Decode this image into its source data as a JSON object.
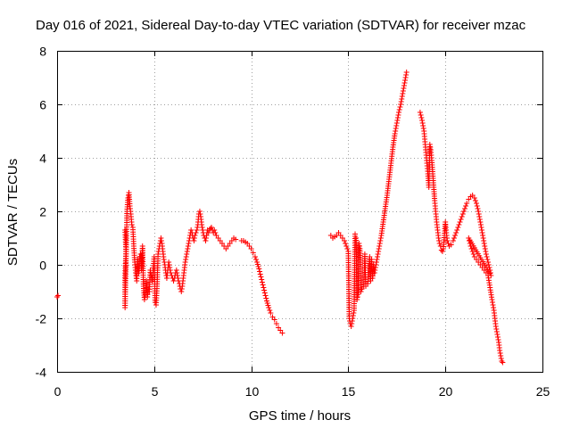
{
  "chart_data": {
    "type": "scatter",
    "title": "Day 016 of 2021, Sidereal Day-to-day VTEC variation (SDTVAR) for receiver mzac",
    "xlabel": "GPS time / hours",
    "ylabel": "SDTVAR / TECUs",
    "xlim": [
      0,
      25
    ],
    "ylim": [
      -4,
      8
    ],
    "xticks": [
      0,
      5,
      10,
      15,
      20,
      25
    ],
    "yticks": [
      -4,
      -2,
      0,
      2,
      4,
      6,
      8
    ],
    "xtick_labels": [
      "0",
      "5",
      "10",
      "15",
      "20",
      "25"
    ],
    "ytick_labels": [
      "-4",
      "-2",
      "0",
      "2",
      "4",
      "6",
      "8"
    ],
    "grid": true,
    "marker": "+",
    "color": "#ff0000",
    "series": [
      {
        "name": "SDTVAR",
        "segments": [
          [
            [
              0.0,
              -1.2
            ],
            [
              0.05,
              -1.15
            ]
          ],
          [
            [
              3.5,
              1.3
            ],
            [
              3.55,
              0.5
            ],
            [
              3.5,
              -0.4
            ],
            [
              3.5,
              -1.1
            ],
            [
              3.5,
              -1.6
            ],
            [
              3.6,
              2.0
            ],
            [
              3.65,
              2.5
            ],
            [
              3.7,
              2.7
            ],
            [
              3.75,
              2.2
            ],
            [
              3.8,
              1.9
            ],
            [
              3.85,
              1.5
            ],
            [
              3.9,
              1.4
            ],
            [
              3.95,
              0.7
            ],
            [
              4.0,
              0.1
            ],
            [
              4.05,
              -0.3
            ],
            [
              4.1,
              -0.6
            ],
            [
              4.15,
              0.2
            ],
            [
              4.2,
              -0.3
            ],
            [
              4.25,
              0.3
            ],
            [
              4.3,
              0.4
            ],
            [
              4.35,
              -0.2
            ],
            [
              4.4,
              0.7
            ],
            [
              4.45,
              -0.8
            ],
            [
              4.5,
              -1.3
            ],
            [
              4.55,
              -1.1
            ],
            [
              4.6,
              -0.6
            ],
            [
              4.65,
              -1.2
            ],
            [
              4.7,
              -0.9
            ],
            [
              4.75,
              -1.0
            ],
            [
              4.8,
              -0.2
            ],
            [
              4.85,
              -0.4
            ],
            [
              4.9,
              -0.6
            ],
            [
              4.95,
              -0.2
            ],
            [
              5.0,
              0.3
            ],
            [
              5.05,
              -1.4
            ],
            [
              5.1,
              -1.5
            ],
            [
              5.15,
              -0.8
            ],
            [
              5.2,
              0.4
            ],
            [
              5.25,
              0.6
            ],
            [
              5.3,
              0.8
            ],
            [
              5.35,
              1.0
            ],
            [
              5.4,
              0.8
            ],
            [
              5.45,
              0.5
            ],
            [
              5.5,
              0.2
            ],
            [
              5.55,
              0.0
            ],
            [
              5.6,
              -0.3
            ],
            [
              5.65,
              -0.5
            ],
            [
              5.7,
              -0.2
            ],
            [
              5.75,
              0.1
            ],
            [
              5.8,
              -0.1
            ],
            [
              5.85,
              -0.3
            ],
            [
              5.9,
              -0.4
            ],
            [
              5.95,
              -0.5
            ],
            [
              6.0,
              -0.6
            ],
            [
              6.05,
              -0.5
            ],
            [
              6.1,
              -0.3
            ],
            [
              6.15,
              -0.2
            ],
            [
              6.2,
              -0.4
            ],
            [
              6.25,
              -0.6
            ],
            [
              6.3,
              -0.7
            ],
            [
              6.35,
              -0.9
            ],
            [
              6.4,
              -1.0
            ],
            [
              6.45,
              -0.8
            ],
            [
              6.5,
              -0.5
            ],
            [
              6.55,
              -0.2
            ],
            [
              6.6,
              0.1
            ],
            [
              6.65,
              0.3
            ],
            [
              6.7,
              0.5
            ],
            [
              6.75,
              0.7
            ],
            [
              6.8,
              0.9
            ],
            [
              6.85,
              1.1
            ],
            [
              6.9,
              1.3
            ],
            [
              6.95,
              1.2
            ],
            [
              7.0,
              1.0
            ],
            [
              7.05,
              0.9
            ],
            [
              7.1,
              1.1
            ],
            [
              7.15,
              1.2
            ],
            [
              7.2,
              1.3
            ],
            [
              7.25,
              1.5
            ],
            [
              7.3,
              1.9
            ],
            [
              7.35,
              2.0
            ],
            [
              7.4,
              1.8
            ],
            [
              7.45,
              1.5
            ],
            [
              7.5,
              1.3
            ],
            [
              7.55,
              1.1
            ],
            [
              7.6,
              1.0
            ],
            [
              7.65,
              0.9
            ],
            [
              7.7,
              1.1
            ],
            [
              7.75,
              1.3
            ],
            [
              7.8,
              1.2
            ],
            [
              7.85,
              1.3
            ],
            [
              7.9,
              1.35
            ],
            [
              7.95,
              1.4
            ],
            [
              8.0,
              1.3
            ],
            [
              8.05,
              1.2
            ],
            [
              8.1,
              1.3
            ],
            [
              8.15,
              1.2
            ],
            [
              8.2,
              1.1
            ],
            [
              8.3,
              1.0
            ],
            [
              8.4,
              0.9
            ],
            [
              8.5,
              0.8
            ],
            [
              8.6,
              0.7
            ],
            [
              8.7,
              0.6
            ],
            [
              8.8,
              0.7
            ],
            [
              8.9,
              0.8
            ],
            [
              9.0,
              0.9
            ],
            [
              9.1,
              1.0
            ],
            [
              9.2,
              0.95
            ]
          ],
          [
            [
              9.5,
              0.9
            ],
            [
              9.6,
              0.9
            ],
            [
              9.7,
              0.85
            ],
            [
              9.8,
              0.8
            ],
            [
              9.9,
              0.7
            ],
            [
              10.0,
              0.6
            ],
            [
              10.1,
              0.45
            ],
            [
              10.2,
              0.3
            ],
            [
              10.3,
              0.1
            ],
            [
              10.4,
              -0.15
            ],
            [
              10.5,
              -0.45
            ],
            [
              10.6,
              -0.75
            ],
            [
              10.7,
              -1.05
            ],
            [
              10.8,
              -1.35
            ],
            [
              10.9,
              -1.6
            ],
            [
              11.0,
              -1.8
            ],
            [
              11.1,
              -1.95
            ],
            [
              11.2,
              -2.05
            ],
            [
              11.3,
              -2.2
            ],
            [
              11.4,
              -2.35
            ],
            [
              11.5,
              -2.45
            ],
            [
              11.6,
              -2.55
            ]
          ],
          [
            [
              14.1,
              1.1
            ],
            [
              14.2,
              1.0
            ],
            [
              14.3,
              1.05
            ],
            [
              14.4,
              1.1
            ],
            [
              14.5,
              1.2
            ],
            [
              14.6,
              1.1
            ],
            [
              14.7,
              1.0
            ],
            [
              14.8,
              0.9
            ],
            [
              14.9,
              0.7
            ],
            [
              15.0,
              0.5
            ],
            [
              15.05,
              -2.0
            ],
            [
              15.1,
              -2.2
            ],
            [
              15.15,
              -2.3
            ],
            [
              15.2,
              -2.1
            ],
            [
              15.25,
              -1.9
            ],
            [
              15.3,
              -1.7
            ],
            [
              15.35,
              1.15
            ],
            [
              15.4,
              1.0
            ],
            [
              15.45,
              -1.3
            ],
            [
              15.5,
              -1.1
            ],
            [
              15.55,
              0.8
            ],
            [
              15.6,
              0.6
            ],
            [
              15.65,
              -1.0
            ],
            [
              15.7,
              -0.9
            ],
            [
              15.8,
              -0.8
            ],
            [
              15.85,
              0.4
            ],
            [
              15.9,
              -0.8
            ],
            [
              16.0,
              -0.7
            ],
            [
              16.1,
              0.3
            ],
            [
              16.15,
              -0.6
            ],
            [
              16.2,
              0.2
            ],
            [
              16.25,
              -0.5
            ],
            [
              16.3,
              0.0
            ],
            [
              16.35,
              -0.3
            ],
            [
              16.4,
              -0.1
            ],
            [
              16.5,
              0.3
            ],
            [
              16.6,
              0.7
            ],
            [
              16.7,
              1.1
            ],
            [
              16.8,
              1.6
            ],
            [
              16.9,
              2.1
            ],
            [
              17.0,
              2.6
            ],
            [
              17.1,
              3.2
            ],
            [
              17.2,
              3.8
            ],
            [
              17.3,
              4.4
            ],
            [
              17.4,
              4.9
            ],
            [
              17.5,
              5.3
            ],
            [
              17.6,
              5.7
            ],
            [
              17.7,
              6.0
            ],
            [
              17.8,
              6.4
            ],
            [
              17.9,
              6.8
            ],
            [
              18.0,
              7.2
            ]
          ],
          [
            [
              18.7,
              5.7
            ],
            [
              18.8,
              5.4
            ],
            [
              18.9,
              5.0
            ],
            [
              18.95,
              4.6
            ],
            [
              19.0,
              4.2
            ],
            [
              19.05,
              3.8
            ],
            [
              19.1,
              3.4
            ],
            [
              19.15,
              2.9
            ],
            [
              19.2,
              4.5
            ],
            [
              19.25,
              4.3
            ],
            [
              19.3,
              3.9
            ],
            [
              19.35,
              3.4
            ],
            [
              19.4,
              2.9
            ],
            [
              19.45,
              2.4
            ],
            [
              19.5,
              2.0
            ],
            [
              19.55,
              1.6
            ],
            [
              19.6,
              1.3
            ],
            [
              19.65,
              1.0
            ],
            [
              19.7,
              0.8
            ],
            [
              19.75,
              0.7
            ],
            [
              19.8,
              0.55
            ],
            [
              19.85,
              0.5
            ],
            [
              19.9,
              0.6
            ],
            [
              20.0,
              1.6
            ],
            [
              20.05,
              1.2
            ],
            [
              20.1,
              0.9
            ],
            [
              20.2,
              0.7
            ],
            [
              20.3,
              0.75
            ],
            [
              20.4,
              0.9
            ],
            [
              20.5,
              1.1
            ],
            [
              20.6,
              1.3
            ],
            [
              20.7,
              1.5
            ],
            [
              20.8,
              1.7
            ],
            [
              20.9,
              1.9
            ],
            [
              21.0,
              2.1
            ],
            [
              21.1,
              2.3
            ],
            [
              21.2,
              2.45
            ],
            [
              21.3,
              2.55
            ],
            [
              21.4,
              2.6
            ],
            [
              21.5,
              2.5
            ],
            [
              21.6,
              2.3
            ],
            [
              21.7,
              2.0
            ],
            [
              21.8,
              1.6
            ],
            [
              21.9,
              1.2
            ],
            [
              22.0,
              0.8
            ],
            [
              22.1,
              0.4
            ],
            [
              22.2,
              0.1
            ],
            [
              22.3,
              -0.2
            ],
            [
              22.35,
              -0.4
            ],
            [
              21.2,
              1.0
            ],
            [
              21.3,
              0.7
            ],
            [
              21.4,
              0.5
            ],
            [
              21.5,
              0.3
            ],
            [
              21.6,
              0.2
            ],
            [
              21.7,
              0.1
            ],
            [
              21.8,
              0.0
            ],
            [
              21.9,
              -0.1
            ],
            [
              22.0,
              -0.2
            ],
            [
              22.1,
              -0.3
            ],
            [
              22.2,
              -0.4
            ],
            [
              22.4,
              -1.3
            ],
            [
              22.45,
              -1.5
            ],
            [
              22.5,
              -1.7
            ],
            [
              22.55,
              -2.0
            ],
            [
              22.6,
              -2.3
            ],
            [
              22.65,
              -2.5
            ],
            [
              22.7,
              -2.7
            ],
            [
              22.75,
              -2.9
            ],
            [
              22.8,
              -3.2
            ],
            [
              22.85,
              -3.4
            ],
            [
              22.9,
              -3.6
            ],
            [
              22.95,
              -3.65
            ]
          ]
        ]
      }
    ]
  }
}
